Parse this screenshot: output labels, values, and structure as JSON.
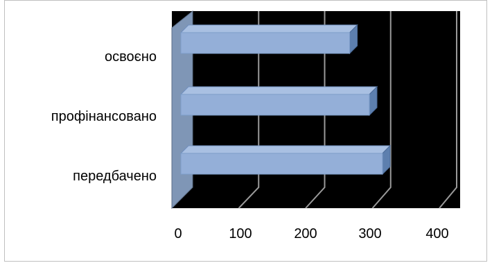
{
  "chart_data": {
    "type": "bar",
    "orientation": "horizontal",
    "style": "3d",
    "categories": [
      "освоєно",
      "профінансовано",
      "передбачено"
    ],
    "values": [
      257,
      287,
      307
    ],
    "xlim": [
      0,
      400
    ],
    "xticks": [
      0,
      100,
      200,
      300,
      400
    ],
    "xtick_labels": [
      "0",
      "100",
      "200",
      "300",
      "400"
    ],
    "title": "",
    "xlabel": "",
    "ylabel": "",
    "grid": true,
    "legend": "none",
    "colors": {
      "bar_front": "#94afd8",
      "bar_top": "#a9c0e2",
      "bar_side": "#5d7fae",
      "plot_background": "#000000",
      "wall": "#7f96b6",
      "gridline": "#9a9a9a"
    }
  }
}
